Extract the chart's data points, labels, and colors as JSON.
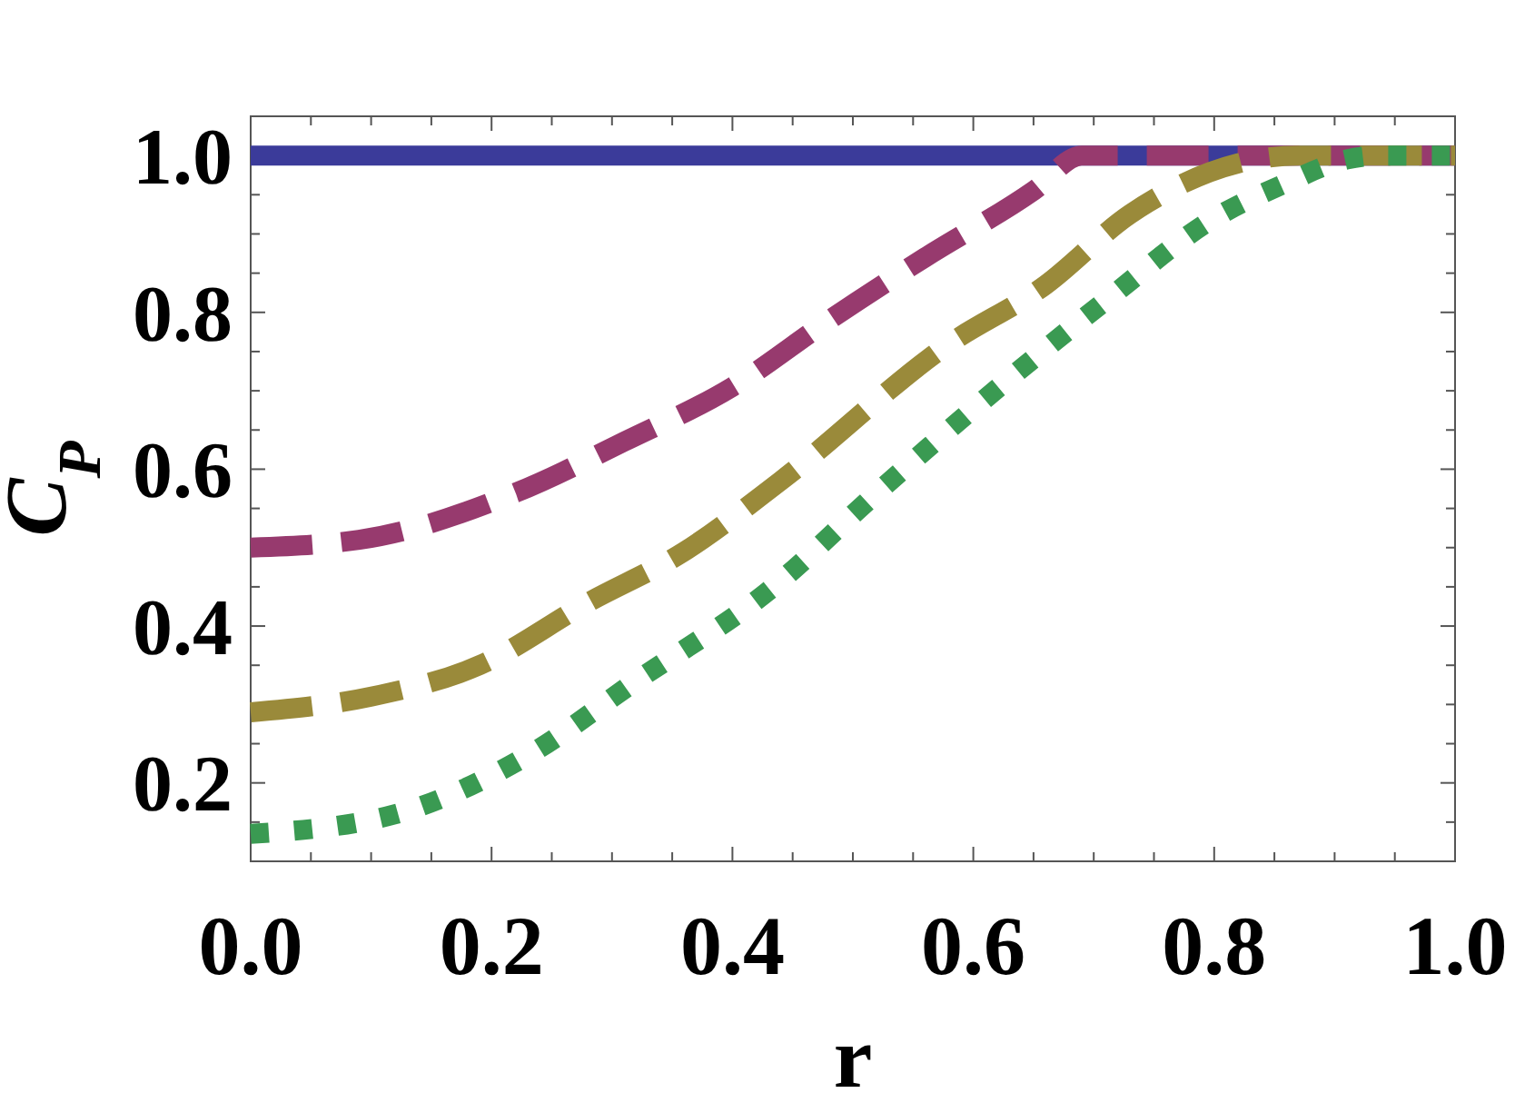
{
  "chart_data": {
    "type": "line",
    "xlabel": "r",
    "ylabel": "C$_{P}$",
    "xlim": [
      0,
      1
    ],
    "ylim": [
      0.1,
      1.05
    ],
    "xticks": [
      {
        "value": 0,
        "label": "0.0"
      },
      {
        "value": 0.05,
        "label": null
      },
      {
        "value": 0.1,
        "label": null
      },
      {
        "value": 0.15,
        "label": null
      },
      {
        "value": 0.2,
        "label": "0.2"
      },
      {
        "value": 0.25,
        "label": null
      },
      {
        "value": 0.3,
        "label": null
      },
      {
        "value": 0.35,
        "label": null
      },
      {
        "value": 0.4,
        "label": "0.4"
      },
      {
        "value": 0.45,
        "label": null
      },
      {
        "value": 0.5,
        "label": null
      },
      {
        "value": 0.55,
        "label": null
      },
      {
        "value": 0.6,
        "label": "0.6"
      },
      {
        "value": 0.65,
        "label": null
      },
      {
        "value": 0.7,
        "label": null
      },
      {
        "value": 0.75,
        "label": null
      },
      {
        "value": 0.8,
        "label": "0.8"
      },
      {
        "value": 0.85,
        "label": null
      },
      {
        "value": 0.9,
        "label": null
      },
      {
        "value": 0.95,
        "label": null
      },
      {
        "value": 1,
        "label": "1.0"
      }
    ],
    "yticks": [
      {
        "value": 0.15,
        "label": null
      },
      {
        "value": 0.2,
        "label": "0.2"
      },
      {
        "value": 0.25,
        "label": null
      },
      {
        "value": 0.3,
        "label": null
      },
      {
        "value": 0.35,
        "label": null
      },
      {
        "value": 0.4,
        "label": "0.4"
      },
      {
        "value": 0.45,
        "label": null
      },
      {
        "value": 0.5,
        "label": null
      },
      {
        "value": 0.55,
        "label": null
      },
      {
        "value": 0.6,
        "label": "0.6"
      },
      {
        "value": 0.65,
        "label": null
      },
      {
        "value": 0.7,
        "label": null
      },
      {
        "value": 0.75,
        "label": null
      },
      {
        "value": 0.8,
        "label": "0.8"
      },
      {
        "value": 0.85,
        "label": null
      },
      {
        "value": 0.9,
        "label": null
      },
      {
        "value": 0.95,
        "label": null
      },
      {
        "value": 1,
        "label": "1.0"
      },
      {
        "value": 1.05,
        "label": null
      }
    ],
    "series": [
      {
        "color": "#3b3b9a",
        "line_style": "solid",
        "x": [
          0,
          1
        ],
        "values": [
          1,
          1
        ]
      },
      {
        "color": "#973a6e",
        "line_style": "dashed",
        "x": [
          0,
          0.09,
          0.22,
          0.31,
          0.4,
          0.48,
          0.56,
          0.65,
          0.69,
          1
        ],
        "values": [
          0.5,
          0.51,
          0.57,
          0.635,
          0.705,
          0.79,
          0.87,
          0.955,
          1,
          1
        ]
      },
      {
        "color": "#9a8a3a",
        "line_style": "dashed",
        "x": [
          0,
          0.1,
          0.19,
          0.28,
          0.36,
          0.44,
          0.58,
          0.66,
          0.73,
          0.82,
          0.87,
          1
        ],
        "values": [
          0.29,
          0.31,
          0.35,
          0.43,
          0.495,
          0.585,
          0.76,
          0.835,
          0.925,
          0.99,
          1,
          1
        ]
      },
      {
        "color": "#3a9a52",
        "line_style": "dotted",
        "x": [
          0,
          0.12,
          0.23,
          0.32,
          0.43,
          0.52,
          0.61,
          0.71,
          0.8,
          0.86,
          0.91,
          0.94,
          1
        ],
        "values": [
          0.135,
          0.16,
          0.235,
          0.33,
          0.445,
          0.57,
          0.69,
          0.815,
          0.92,
          0.965,
          0.995,
          1,
          1
        ]
      }
    ]
  }
}
